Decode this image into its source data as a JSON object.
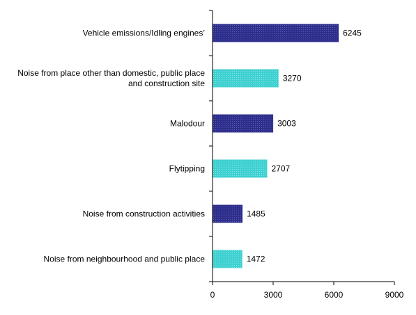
{
  "chart_data": {
    "type": "bar",
    "orientation": "horizontal",
    "categories": [
      [
        "Vehicle emissions/Idling engines’"
      ],
      [
        "Noise from place other than domestic, public place",
        "and construction site"
      ],
      [
        "Malodour"
      ],
      [
        "Flytipping"
      ],
      [
        "Noise from construction activities"
      ],
      [
        "Noise from neighbourhood and public place"
      ]
    ],
    "values": [
      6245,
      3270,
      3003,
      2707,
      1485,
      1472
    ],
    "value_labels": [
      "6245",
      "3270",
      "3003",
      "2707",
      "1485",
      "1472"
    ],
    "bar_colors": [
      "#2e2e8c",
      "#40d0d0",
      "#2e2e8c",
      "#40d0d0",
      "#2e2e8c",
      "#40d0d0"
    ],
    "xlim": [
      0,
      9000
    ],
    "xticks": [
      0,
      3000,
      6000,
      9000
    ],
    "xtick_labels": [
      "0",
      "3000",
      "6000",
      "9000"
    ],
    "title": "",
    "xlabel": "",
    "ylabel": "",
    "grid": false,
    "legend": "none"
  }
}
